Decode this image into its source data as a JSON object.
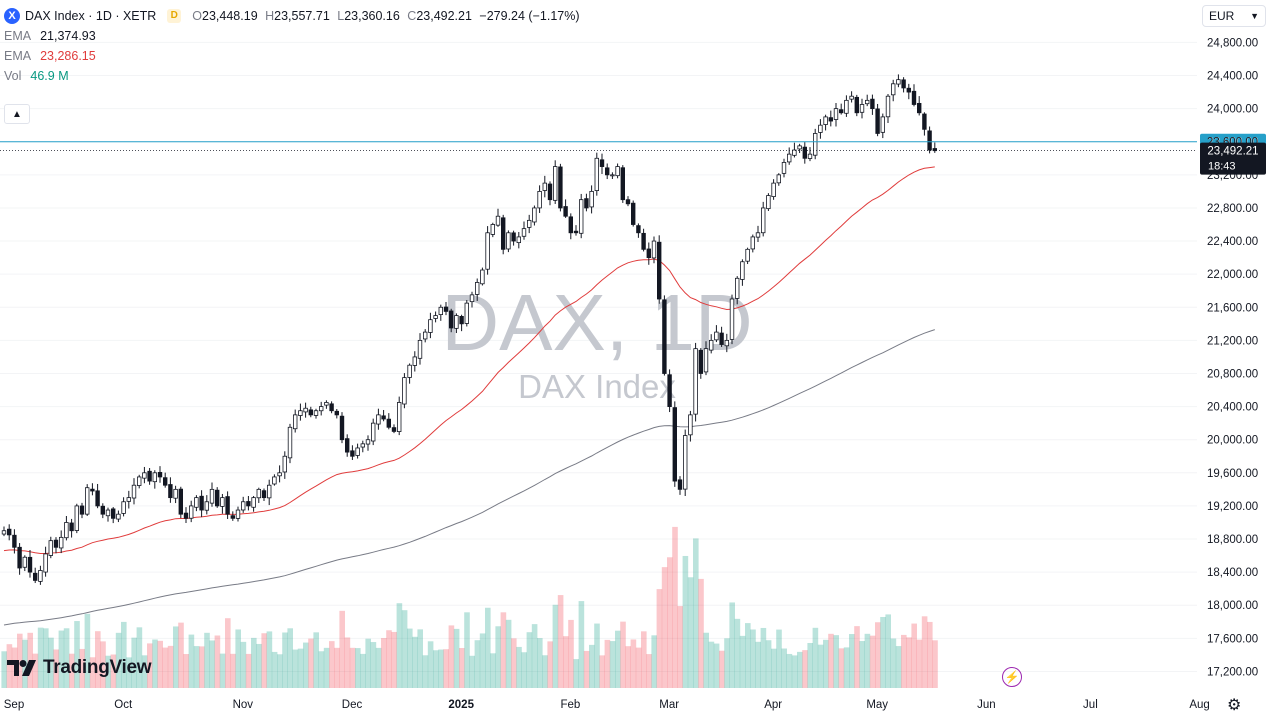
{
  "header": {
    "symbol_icon": "X",
    "symbol": "DAX Index · 1D · XETR",
    "badge": "D",
    "ohlc": [
      {
        "label": "O",
        "value": "23,448.19"
      },
      {
        "label": "H",
        "value": "23,557.71"
      },
      {
        "label": "L",
        "value": "23,360.16"
      },
      {
        "label": "C",
        "value": "23,492.21"
      }
    ],
    "change": "−279.24 (−1.17%)"
  },
  "indicators": [
    {
      "name": "EMA",
      "value": "21,374.93",
      "color": "#787b86"
    },
    {
      "name": "EMA",
      "value": "23,286.15",
      "color": "#e03c3c"
    },
    {
      "name": "Vol",
      "value": "46.9 M",
      "color": "#089981"
    }
  ],
  "collapse_icon": "chevron-up-icon",
  "currency": {
    "value": "EUR",
    "icon": "chevron-down-icon"
  },
  "watermark": {
    "main": "DAX, 1D",
    "sub": "DAX Index"
  },
  "logo": "TradingView",
  "chart_data": {
    "type": "candlestick",
    "y_ticks": [
      17200,
      17600,
      18000,
      18400,
      18800,
      19200,
      19600,
      20000,
      20400,
      20800,
      21200,
      21600,
      22000,
      22400,
      22800,
      23200,
      23600,
      24000,
      24400,
      24800
    ],
    "y_tick_labels": [
      "17,200.00",
      "17,600.00",
      "18,000.00",
      "18,400.00",
      "18,800.00",
      "19,200.00",
      "19,600.00",
      "20,000.00",
      "20,400.00",
      "20,800.00",
      "21,200.00",
      "21,600.00",
      "22,000.00",
      "22,400.00",
      "22,800.00",
      "23,200.00",
      "23,600.00",
      "24,000.00",
      "24,400.00",
      "24,800.00"
    ],
    "x_labels": [
      "Sep",
      "Oct",
      "Nov",
      "Dec",
      "2025",
      "Feb",
      "Mar",
      "Apr",
      "May",
      "Jun",
      "Jul",
      "Aug"
    ],
    "x_label_index": [
      0,
      21,
      44,
      65,
      86,
      107,
      126,
      146,
      166,
      187,
      207,
      228
    ],
    "bars_shown": 195,
    "last_price": {
      "value": 23492.21,
      "label": "23,492.21",
      "countdown": "18:43",
      "color": "#131722"
    },
    "horizontal_line": {
      "value": 23600,
      "label": "23,600.00",
      "color": "#26a0c9"
    },
    "closes": [
      18900,
      18850,
      18700,
      18450,
      18580,
      18400,
      18300,
      18420,
      18620,
      18780,
      18700,
      18820,
      19000,
      18900,
      19200,
      19100,
      19420,
      19380,
      19200,
      19100,
      19150,
      19050,
      19100,
      19250,
      19300,
      19450,
      19550,
      19600,
      19500,
      19600,
      19550,
      19450,
      19300,
      19400,
      19100,
      19050,
      19200,
      19300,
      19150,
      19250,
      19400,
      19200,
      19300,
      19100,
      19050,
      19150,
      19250,
      19200,
      19300,
      19400,
      19300,
      19450,
      19550,
      19600,
      19800,
      20150,
      20300,
      20350,
      20380,
      20300,
      20350,
      20400,
      20450,
      20350,
      20300,
      20000,
      19850,
      19800,
      19900,
      19950,
      20000,
      20200,
      20300,
      20250,
      20150,
      20100,
      20450,
      20750,
      20900,
      21000,
      21200,
      21300,
      21450,
      21500,
      21600,
      21550,
      21350,
      21500,
      21400,
      21650,
      21750,
      21900,
      22050,
      22500,
      22600,
      22700,
      22300,
      22500,
      22400,
      22450,
      22550,
      22650,
      22800,
      23000,
      23100,
      22900,
      23300,
      22800,
      22700,
      22500,
      22500,
      22900,
      22800,
      23000,
      23400,
      23300,
      23200,
      23200,
      23300,
      22900,
      22850,
      22600,
      22500,
      22300,
      22200,
      22400,
      21700,
      20800,
      20400,
      19500,
      19400,
      20050,
      20300,
      21100,
      20800,
      21100,
      21200,
      21300,
      21150,
      21200,
      21700,
      21950,
      22150,
      22300,
      22450,
      22500,
      22800,
      22950,
      23100,
      23200,
      23350,
      23450,
      23500,
      23550,
      23400,
      23450,
      23700,
      23800,
      23900,
      23850,
      24000,
      23950,
      24100,
      24150,
      23950,
      24050,
      24100,
      24000,
      23700,
      23900,
      24150,
      24300,
      24350,
      24250,
      24200,
      24050,
      23950,
      23750,
      23500,
      23492
    ],
    "series": [
      {
        "name": "EMA",
        "value": "23,286.15",
        "color": "#e03c3c"
      },
      {
        "name": "EMA",
        "value": "21,374.93",
        "color": "#787b86"
      },
      {
        "name": "Vol",
        "value": "46.9 M",
        "color": "#089981"
      }
    ],
    "up_color": "#089981",
    "down_color": "#f23645",
    "candle_color": "#131722"
  }
}
